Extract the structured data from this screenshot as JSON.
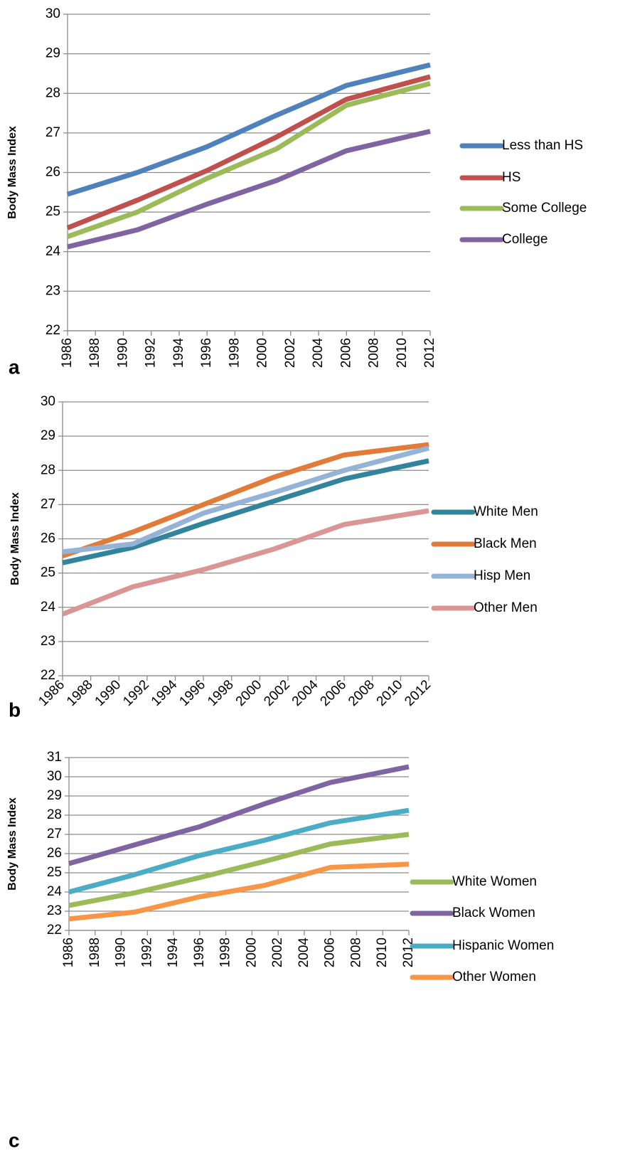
{
  "chart_data": [
    {
      "type": "line",
      "panel_label": "a",
      "ylabel": "Body Mass Index",
      "x": [
        1986,
        1991,
        1996,
        2001,
        2006,
        2012
      ],
      "xlim": [
        1986,
        2012
      ],
      "xticks": [
        1986,
        1988,
        1990,
        1992,
        1994,
        1996,
        1998,
        2000,
        2002,
        2004,
        2006,
        2008,
        2010,
        2012
      ],
      "ylim": [
        22,
        30
      ],
      "yticks": [
        22,
        23,
        24,
        25,
        26,
        27,
        28,
        29,
        30
      ],
      "grid": true,
      "legend": "right",
      "series": [
        {
          "name": "Less than HS",
          "color": "#4f81bd",
          "values": [
            25.45,
            26.0,
            26.65,
            27.45,
            28.2,
            28.72
          ]
        },
        {
          "name": "HS",
          "color": "#c0504d",
          "values": [
            24.6,
            25.3,
            26.05,
            26.9,
            27.85,
            28.42
          ]
        },
        {
          "name": "Some College",
          "color": "#9bbb59",
          "values": [
            24.38,
            25.0,
            25.85,
            26.6,
            27.7,
            28.25
          ]
        },
        {
          "name": "College",
          "color": "#8064a2",
          "values": [
            24.12,
            24.55,
            25.2,
            25.8,
            26.55,
            27.04
          ]
        }
      ]
    },
    {
      "type": "line",
      "panel_label": "b",
      "ylabel": "Body Mass Index",
      "x": [
        1986,
        1991,
        1996,
        2001,
        2006,
        2012
      ],
      "xlim": [
        1986,
        2012
      ],
      "xticks": [
        1986,
        1988,
        1990,
        1992,
        1994,
        1996,
        1998,
        2000,
        2002,
        2004,
        2006,
        2008,
        2010,
        2012
      ],
      "ylim": [
        22,
        30
      ],
      "yticks": [
        22,
        23,
        24,
        25,
        26,
        27,
        28,
        29,
        30
      ],
      "grid": true,
      "legend": "right",
      "series": [
        {
          "name": "White Men",
          "color": "#31849b",
          "values": [
            25.3,
            25.75,
            26.45,
            27.1,
            27.75,
            28.28
          ]
        },
        {
          "name": "Black Men",
          "color": "#e07b39",
          "values": [
            25.5,
            26.2,
            27.0,
            27.8,
            28.45,
            28.75
          ]
        },
        {
          "name": "Hisp Men",
          "color": "#95b3d7",
          "values": [
            25.62,
            25.85,
            26.75,
            27.35,
            28.0,
            28.65
          ]
        },
        {
          "name": "Other Men",
          "color": "#d99694",
          "values": [
            23.8,
            24.6,
            25.1,
            25.7,
            26.42,
            26.82
          ]
        }
      ]
    },
    {
      "type": "line",
      "panel_label": "c",
      "ylabel": "Body Mass Index",
      "x": [
        1986,
        1991,
        1996,
        2001,
        2006,
        2012
      ],
      "xlim": [
        1986,
        2012
      ],
      "xticks": [
        1986,
        1988,
        1990,
        1992,
        1994,
        1996,
        1998,
        2000,
        2002,
        2004,
        2006,
        2008,
        2010,
        2012
      ],
      "ylim": [
        22,
        31
      ],
      "yticks": [
        22,
        23,
        24,
        25,
        26,
        27,
        28,
        29,
        30,
        31
      ],
      "grid": true,
      "legend": "right",
      "series": [
        {
          "name": "White Women",
          "color": "#9bbb59",
          "values": [
            23.3,
            23.95,
            24.75,
            25.6,
            26.5,
            27.0
          ]
        },
        {
          "name": "Black Women",
          "color": "#8064a2",
          "values": [
            25.48,
            26.45,
            27.4,
            28.6,
            29.7,
            30.52
          ]
        },
        {
          "name": "Hispanic Women",
          "color": "#4bacc6",
          "values": [
            24.0,
            24.9,
            25.9,
            26.7,
            27.6,
            28.25
          ]
        },
        {
          "name": "Other Women",
          "color": "#f79646",
          "values": [
            22.6,
            22.95,
            23.75,
            24.35,
            25.28,
            25.45
          ]
        }
      ]
    }
  ]
}
